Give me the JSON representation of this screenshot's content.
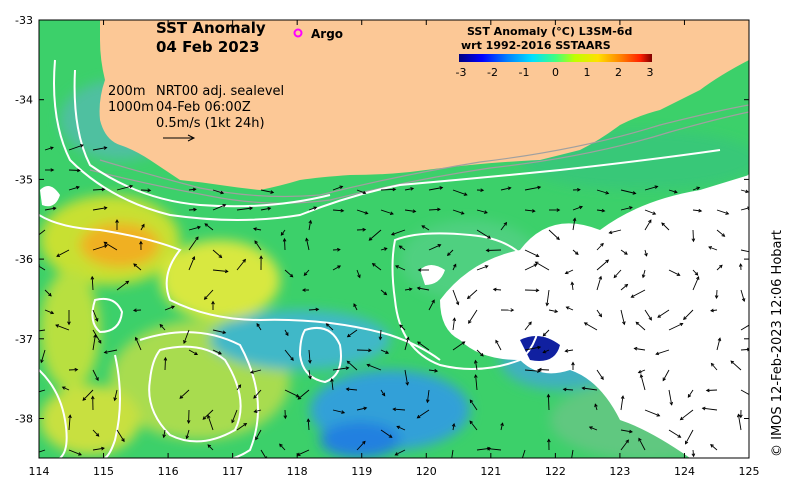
{
  "title": {
    "line1": "SST Anomaly",
    "line2": "04 Feb 2023"
  },
  "argo": {
    "label": "Argo",
    "color": "#ff00ff"
  },
  "legend": {
    "depth_200": "200m",
    "depth_1000": "1000m",
    "sealevel": "NRT00 adj. sealevel",
    "time": "04-Feb 06:00Z",
    "scale": "0.5m/s (1kt 24h)"
  },
  "colorbar": {
    "title1": "SST Anomaly (°C) L3SM-6d",
    "title2": "wrt 1992-2016 SSTAARS",
    "ticks": [
      "-3",
      "-2",
      "-1",
      "0",
      "1",
      "2",
      "3"
    ],
    "colors": [
      "#00007f",
      "#0000ff",
      "#0080ff",
      "#00e0ff",
      "#40ff80",
      "#c0ff00",
      "#ffe000",
      "#ff8000",
      "#ff2000",
      "#800000"
    ]
  },
  "axes": {
    "x_ticks": [
      "114",
      "115",
      "116",
      "117",
      "118",
      "119",
      "120",
      "121",
      "122",
      "123",
      "124",
      "125"
    ],
    "y_ticks": [
      "-33",
      "-34",
      "-35",
      "-36",
      "-37",
      "-38"
    ]
  },
  "credit": "© IMOS 12-Feb-2023 12:06 Hobart",
  "palette": {
    "land": "#fcc896",
    "no_data": "#ffffff",
    "contour": "#ffffff",
    "isobath": "#a0a0a0",
    "arrow": "#000000"
  }
}
